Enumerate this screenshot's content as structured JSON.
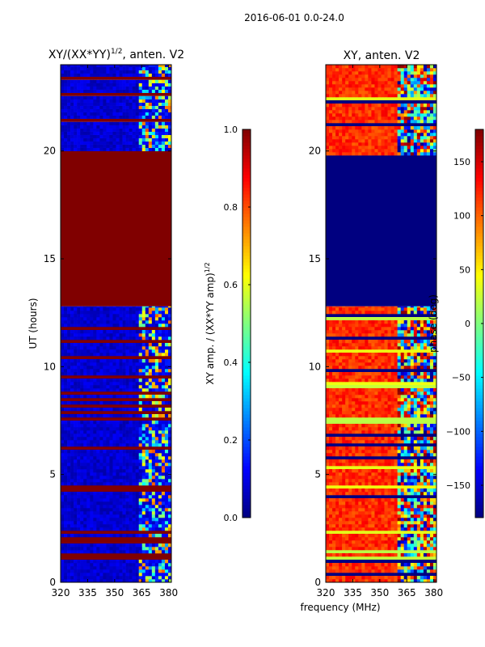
{
  "figure": {
    "suptitle": "2016-06-01 0.0-24.0",
    "xlabel_shared": "frequency (MHz)"
  },
  "chart_data": [
    {
      "type": "heatmap",
      "title_main": "XY/(XX*YY)",
      "title_sup": "1/2",
      "title_tail": ", anten. V2",
      "ylabel": "UT (hours)",
      "xlim": [
        320,
        381.5
      ],
      "ylim": [
        0,
        24
      ],
      "xticks": [
        320,
        335,
        350,
        365,
        380
      ],
      "yticks": [
        0,
        5,
        10,
        15,
        20
      ],
      "colorbar": {
        "label_main": "XY amp. / (XX*YY amp)",
        "label_sup": "1/2",
        "range": [
          0,
          1
        ],
        "ticks": [
          "0.0",
          "0.2",
          "0.4",
          "0.6",
          "0.8",
          "1.0"
        ],
        "tick_values": [
          0,
          0.2,
          0.4,
          0.6,
          0.8,
          1.0
        ]
      },
      "regions": [
        {
          "y": [
            0,
            12.8
          ],
          "base_value": 0.05,
          "note": "noisy low values with bright channels near 362-380 MHz"
        },
        {
          "y": [
            12.8,
            20.0
          ],
          "base_value": 1.0,
          "note": "saturated (flagged) block"
        },
        {
          "y": [
            20.0,
            24.0
          ],
          "base_value": 0.05,
          "note": "noisy low values with bright channels near 362-380 MHz"
        }
      ]
    },
    {
      "type": "heatmap",
      "title": "XY, anten. V2",
      "ylabel": "",
      "xlim": [
        320,
        381.5
      ],
      "ylim": [
        0,
        24
      ],
      "xticks": [
        320,
        335,
        350,
        365,
        380
      ],
      "yticks": [
        0,
        5,
        10,
        15,
        20
      ],
      "colorbar": {
        "label": "phase (deg)",
        "range": [
          -180,
          180
        ],
        "ticks": [
          "−150",
          "−100",
          "−50",
          "0",
          "50",
          "100",
          "150"
        ],
        "tick_values": [
          -150,
          -100,
          -50,
          0,
          50,
          100,
          150
        ]
      },
      "regions": [
        {
          "y": [
            0,
            12.8
          ],
          "base_value": 120,
          "note": "orange/red phase with green-yellow bands; mixed phases above 358 MHz"
        },
        {
          "y": [
            12.8,
            19.8
          ],
          "base_value": -180,
          "note": "uniform dark blue block"
        },
        {
          "y": [
            19.8,
            24.0
          ],
          "base_value": 120,
          "note": "orange/red phase with mixed phases above 358 MHz"
        }
      ]
    }
  ]
}
